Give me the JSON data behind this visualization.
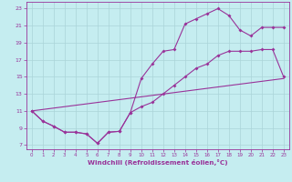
{
  "xlabel": "Windchill (Refroidissement éolien,°C)",
  "bg_color": "#c5edf0",
  "grid_color": "#aad4d8",
  "line_color": "#993399",
  "xlim": [
    -0.5,
    23.5
  ],
  "ylim": [
    6.5,
    23.8
  ],
  "xticks": [
    0,
    1,
    2,
    3,
    4,
    5,
    6,
    7,
    8,
    9,
    10,
    11,
    12,
    13,
    14,
    15,
    16,
    17,
    18,
    19,
    20,
    21,
    22,
    23
  ],
  "yticks": [
    7,
    9,
    11,
    13,
    15,
    17,
    19,
    21,
    23
  ],
  "line1_x": [
    0,
    1,
    2,
    3,
    4,
    5,
    6,
    7,
    8,
    9,
    10,
    11,
    12,
    13,
    14,
    15,
    16,
    17,
    18,
    19,
    20,
    21,
    22,
    23
  ],
  "line1_y": [
    11.0,
    9.8,
    9.2,
    8.5,
    8.5,
    8.3,
    7.2,
    8.5,
    8.6,
    10.8,
    14.8,
    16.5,
    18.0,
    18.2,
    21.2,
    21.8,
    22.4,
    23.0,
    22.2,
    20.5,
    19.8,
    20.8,
    20.8,
    20.8
  ],
  "line2_x": [
    0,
    1,
    2,
    3,
    4,
    5,
    6,
    7,
    8,
    9,
    10,
    11,
    12,
    13,
    14,
    15,
    16,
    17,
    18,
    19,
    20,
    21,
    22,
    23
  ],
  "line2_y": [
    11.0,
    9.8,
    9.2,
    8.5,
    8.5,
    8.3,
    7.2,
    8.5,
    8.6,
    10.8,
    11.5,
    12.0,
    13.0,
    14.0,
    15.0,
    16.0,
    16.5,
    17.5,
    18.0,
    18.0,
    18.0,
    18.2,
    18.2,
    15.0
  ],
  "line3_x": [
    0,
    23
  ],
  "line3_y": [
    11.0,
    14.8
  ]
}
